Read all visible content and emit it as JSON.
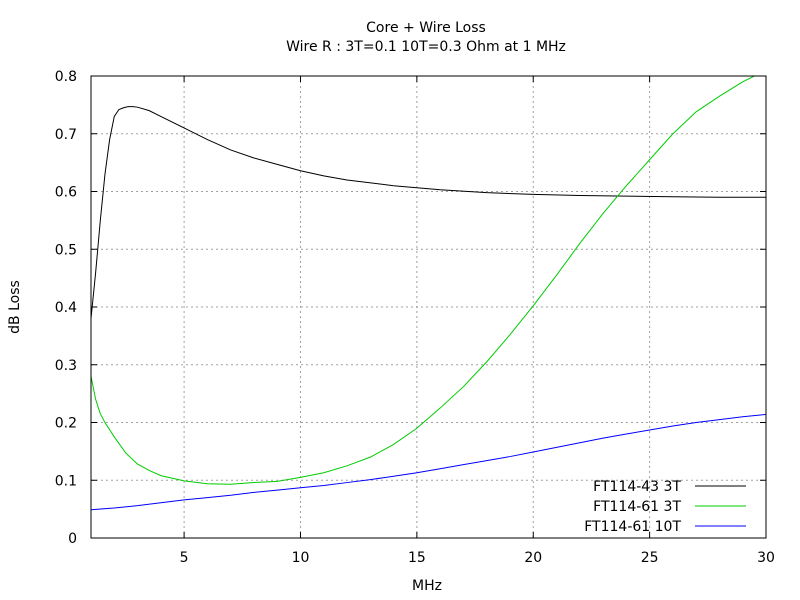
{
  "chart_data": {
    "type": "line",
    "title": "Core + Wire Loss",
    "subtitle": "Wire R : 3T=0.1 10T=0.3 Ohm at 1 MHz",
    "xlabel": "MHz",
    "ylabel": "dB Loss",
    "xlim": [
      1,
      30
    ],
    "ylim": [
      0,
      0.8
    ],
    "x_ticks": [
      5,
      10,
      15,
      20,
      25,
      30
    ],
    "y_ticks": [
      0,
      0.1,
      0.2,
      0.3,
      0.4,
      0.5,
      0.6,
      0.7,
      0.8
    ],
    "x_tick_labels": [
      "5",
      "10",
      "15",
      "20",
      "25",
      "30"
    ],
    "y_tick_labels": [
      "0",
      "0.1",
      "0.2",
      "0.3",
      "0.4",
      "0.5",
      "0.6",
      "0.7",
      "0.8"
    ],
    "grid": true,
    "legend_position": "bottom-right",
    "series": [
      {
        "name": "FT114-43 3T",
        "color": "#000000",
        "x": [
          1,
          1.2,
          1.4,
          1.6,
          1.8,
          2,
          2.2,
          2.4,
          2.6,
          2.8,
          3,
          3.5,
          4,
          5,
          6,
          7,
          8,
          9,
          10,
          11,
          12,
          14,
          16,
          18,
          20,
          22,
          24,
          26,
          28,
          30
        ],
        "y": [
          0.38,
          0.46,
          0.55,
          0.63,
          0.69,
          0.73,
          0.742,
          0.745,
          0.747,
          0.747,
          0.746,
          0.74,
          0.73,
          0.71,
          0.69,
          0.672,
          0.658,
          0.647,
          0.636,
          0.627,
          0.62,
          0.61,
          0.603,
          0.598,
          0.595,
          0.593,
          0.592,
          0.591,
          0.59,
          0.59
        ]
      },
      {
        "name": "FT114-61 3T",
        "color": "#00cc00",
        "x": [
          1,
          1.2,
          1.4,
          1.6,
          2,
          2.5,
          3,
          3.5,
          4,
          5,
          6,
          7,
          8,
          9,
          10,
          11,
          12,
          13,
          14,
          15,
          16,
          17,
          18,
          19,
          20,
          21,
          22,
          23,
          24,
          25,
          26,
          27,
          28,
          29,
          30
        ],
        "y": [
          0.28,
          0.24,
          0.215,
          0.2,
          0.175,
          0.147,
          0.128,
          0.117,
          0.108,
          0.099,
          0.094,
          0.093,
          0.096,
          0.098,
          0.105,
          0.113,
          0.125,
          0.14,
          0.162,
          0.19,
          0.225,
          0.262,
          0.305,
          0.352,
          0.402,
          0.455,
          0.51,
          0.562,
          0.61,
          0.655,
          0.7,
          0.738,
          0.765,
          0.79,
          0.81
        ]
      },
      {
        "name": "FT114-61 10T",
        "color": "#0000ff",
        "x": [
          1,
          2,
          3,
          4,
          5,
          6,
          7,
          8,
          9,
          10,
          11,
          12,
          13,
          14,
          15,
          16,
          17,
          18,
          19,
          20,
          21,
          22,
          23,
          24,
          25,
          26,
          27,
          28,
          29,
          30
        ],
        "y": [
          0.049,
          0.052,
          0.056,
          0.061,
          0.066,
          0.07,
          0.074,
          0.079,
          0.083,
          0.087,
          0.091,
          0.096,
          0.101,
          0.107,
          0.113,
          0.12,
          0.127,
          0.134,
          0.141,
          0.149,
          0.157,
          0.165,
          0.173,
          0.18,
          0.187,
          0.194,
          0.2,
          0.205,
          0.21,
          0.214
        ]
      }
    ]
  }
}
